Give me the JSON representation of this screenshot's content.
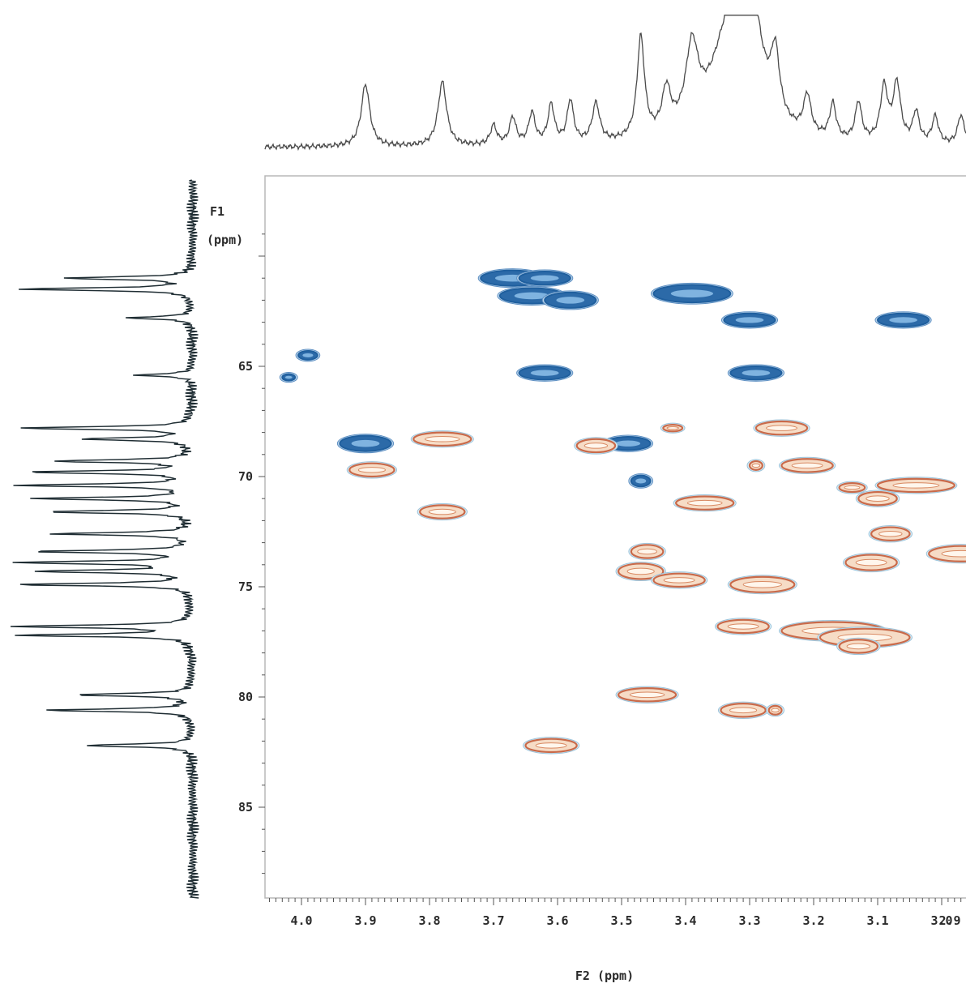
{
  "chart_data": {
    "type": "heatmap",
    "subtype": "2D NMR HSQC contour plot",
    "xlabel": "F2 (ppm)",
    "ylabel_line1": "F1",
    "ylabel_line2": "(ppm)",
    "xlim": [
      4.05,
      2.9
    ],
    "ylim": [
      59,
      88
    ],
    "x_ticks": [
      4.0,
      3.9,
      3.8,
      3.7,
      3.6,
      3.5,
      3.4,
      3.3,
      3.2,
      3.1,
      3.0,
      2.9
    ],
    "x_tick_labels": [
      "4.0",
      "3.9",
      "3.8",
      "3.7",
      "3.6",
      "3.5",
      "3.4",
      "3.3",
      "3.2",
      "3.1",
      "3.0",
      "2.9"
    ],
    "y_ticks": [
      65,
      70,
      75,
      80,
      85
    ],
    "y_tick_labels": [
      "65",
      "70",
      "75",
      "80",
      "85"
    ],
    "colors": {
      "positive": "#1f5f9e",
      "negative": "#c96a4a",
      "negative_fill": "#f6dcc6"
    },
    "series": [
      {
        "phase": "positive",
        "peaks": [
          {
            "x": 3.67,
            "y": 61.0,
            "rx": 0.05,
            "ry": 0.35
          },
          {
            "x": 3.62,
            "y": 61.0,
            "rx": 0.04,
            "ry": 0.3
          },
          {
            "x": 3.64,
            "y": 61.8,
            "rx": 0.05,
            "ry": 0.35
          },
          {
            "x": 3.58,
            "y": 62.0,
            "rx": 0.04,
            "ry": 0.35
          },
          {
            "x": 3.39,
            "y": 61.7,
            "rx": 0.06,
            "ry": 0.4
          },
          {
            "x": 3.3,
            "y": 62.9,
            "rx": 0.04,
            "ry": 0.3
          },
          {
            "x": 3.06,
            "y": 62.9,
            "rx": 0.04,
            "ry": 0.3
          },
          {
            "x": 3.99,
            "y": 64.5,
            "rx": 0.015,
            "ry": 0.2
          },
          {
            "x": 4.02,
            "y": 65.5,
            "rx": 0.01,
            "ry": 0.15
          },
          {
            "x": 3.62,
            "y": 65.3,
            "rx": 0.04,
            "ry": 0.3
          },
          {
            "x": 3.29,
            "y": 65.3,
            "rx": 0.04,
            "ry": 0.3
          },
          {
            "x": 3.9,
            "y": 68.5,
            "rx": 0.04,
            "ry": 0.35
          },
          {
            "x": 3.49,
            "y": 68.5,
            "rx": 0.035,
            "ry": 0.3
          },
          {
            "x": 3.47,
            "y": 70.2,
            "rx": 0.015,
            "ry": 0.25
          }
        ]
      },
      {
        "phase": "negative",
        "peaks": [
          {
            "x": 3.42,
            "y": 67.8,
            "rx": 0.015,
            "ry": 0.15
          },
          {
            "x": 3.25,
            "y": 67.8,
            "rx": 0.04,
            "ry": 0.3
          },
          {
            "x": 3.78,
            "y": 68.3,
            "rx": 0.045,
            "ry": 0.3
          },
          {
            "x": 3.54,
            "y": 68.6,
            "rx": 0.03,
            "ry": 0.3
          },
          {
            "x": 3.89,
            "y": 69.7,
            "rx": 0.035,
            "ry": 0.3
          },
          {
            "x": 3.29,
            "y": 69.5,
            "rx": 0.01,
            "ry": 0.2
          },
          {
            "x": 3.21,
            "y": 69.5,
            "rx": 0.04,
            "ry": 0.3
          },
          {
            "x": 3.04,
            "y": 70.4,
            "rx": 0.06,
            "ry": 0.3
          },
          {
            "x": 3.14,
            "y": 70.5,
            "rx": 0.02,
            "ry": 0.2
          },
          {
            "x": 3.1,
            "y": 71.0,
            "rx": 0.03,
            "ry": 0.3
          },
          {
            "x": 3.37,
            "y": 71.2,
            "rx": 0.045,
            "ry": 0.3
          },
          {
            "x": 3.78,
            "y": 71.6,
            "rx": 0.035,
            "ry": 0.3
          },
          {
            "x": 3.08,
            "y": 72.6,
            "rx": 0.03,
            "ry": 0.3
          },
          {
            "x": 2.97,
            "y": 73.5,
            "rx": 0.05,
            "ry": 0.35
          },
          {
            "x": 3.46,
            "y": 73.4,
            "rx": 0.025,
            "ry": 0.3
          },
          {
            "x": 3.11,
            "y": 73.9,
            "rx": 0.04,
            "ry": 0.35
          },
          {
            "x": 3.47,
            "y": 74.3,
            "rx": 0.035,
            "ry": 0.35
          },
          {
            "x": 3.41,
            "y": 74.7,
            "rx": 0.04,
            "ry": 0.3
          },
          {
            "x": 3.28,
            "y": 74.9,
            "rx": 0.05,
            "ry": 0.35
          },
          {
            "x": 3.31,
            "y": 76.8,
            "rx": 0.04,
            "ry": 0.3
          },
          {
            "x": 3.17,
            "y": 77.0,
            "rx": 0.08,
            "ry": 0.4
          },
          {
            "x": 3.12,
            "y": 77.3,
            "rx": 0.07,
            "ry": 0.4
          },
          {
            "x": 3.13,
            "y": 77.7,
            "rx": 0.03,
            "ry": 0.3
          },
          {
            "x": 3.46,
            "y": 79.9,
            "rx": 0.045,
            "ry": 0.3
          },
          {
            "x": 3.31,
            "y": 80.6,
            "rx": 0.035,
            "ry": 0.3
          },
          {
            "x": 3.26,
            "y": 80.6,
            "rx": 0.01,
            "ry": 0.2
          },
          {
            "x": 3.61,
            "y": 82.2,
            "rx": 0.04,
            "ry": 0.3
          }
        ]
      }
    ],
    "f2_projection": {
      "baseline_ppm_range": [
        4.05,
        2.9
      ],
      "peaks": [
        {
          "x": 3.9,
          "h": 0.32,
          "w": 0.008
        },
        {
          "x": 3.78,
          "h": 0.33,
          "w": 0.008
        },
        {
          "x": 3.7,
          "h": 0.1,
          "w": 0.006
        },
        {
          "x": 3.67,
          "h": 0.14,
          "w": 0.006
        },
        {
          "x": 3.64,
          "h": 0.16,
          "w": 0.006
        },
        {
          "x": 3.61,
          "h": 0.2,
          "w": 0.006
        },
        {
          "x": 3.58,
          "h": 0.22,
          "w": 0.006
        },
        {
          "x": 3.54,
          "h": 0.2,
          "w": 0.007
        },
        {
          "x": 3.47,
          "h": 0.52,
          "w": 0.007
        },
        {
          "x": 3.43,
          "h": 0.22,
          "w": 0.008
        },
        {
          "x": 3.39,
          "h": 0.4,
          "w": 0.012
        },
        {
          "x": 3.33,
          "h": 0.55,
          "w": 0.035
        },
        {
          "x": 3.3,
          "h": 0.62,
          "w": 0.02
        },
        {
          "x": 3.26,
          "h": 0.32,
          "w": 0.008
        },
        {
          "x": 3.21,
          "h": 0.2,
          "w": 0.007
        },
        {
          "x": 3.17,
          "h": 0.18,
          "w": 0.006
        },
        {
          "x": 3.13,
          "h": 0.2,
          "w": 0.006
        },
        {
          "x": 3.09,
          "h": 0.28,
          "w": 0.007
        },
        {
          "x": 3.07,
          "h": 0.3,
          "w": 0.007
        },
        {
          "x": 3.04,
          "h": 0.16,
          "w": 0.006
        },
        {
          "x": 3.01,
          "h": 0.14,
          "w": 0.006
        },
        {
          "x": 2.97,
          "h": 0.15,
          "w": 0.006
        },
        {
          "x": 2.94,
          "h": 0.12,
          "w": 0.006
        }
      ]
    },
    "f1_projection": {
      "peaks": [
        {
          "y": 61.0,
          "h": 0.7
        },
        {
          "y": 61.5,
          "h": 0.95
        },
        {
          "y": 62.8,
          "h": 0.35
        },
        {
          "y": 65.4,
          "h": 0.3
        },
        {
          "y": 67.8,
          "h": 0.95
        },
        {
          "y": 68.3,
          "h": 0.6
        },
        {
          "y": 69.3,
          "h": 0.75
        },
        {
          "y": 69.8,
          "h": 0.9
        },
        {
          "y": 70.4,
          "h": 0.95
        },
        {
          "y": 71.0,
          "h": 0.85
        },
        {
          "y": 71.6,
          "h": 0.8
        },
        {
          "y": 72.6,
          "h": 0.75
        },
        {
          "y": 73.4,
          "h": 0.85
        },
        {
          "y": 73.9,
          "h": 0.95
        },
        {
          "y": 74.3,
          "h": 0.85
        },
        {
          "y": 74.9,
          "h": 0.95
        },
        {
          "y": 76.8,
          "h": 1.0
        },
        {
          "y": 77.2,
          "h": 0.95
        },
        {
          "y": 79.9,
          "h": 0.65
        },
        {
          "y": 80.6,
          "h": 0.8
        },
        {
          "y": 82.2,
          "h": 0.6
        }
      ]
    }
  }
}
